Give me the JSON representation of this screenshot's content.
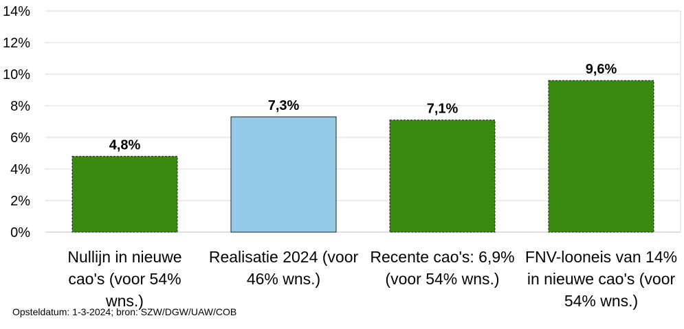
{
  "chart_data": {
    "type": "bar",
    "categories": [
      "Nullijn in nieuwe cao's (voor 54% wns.)",
      "Realisatie 2024 (voor 46% wns.)",
      "Recente cao's: 6,9% (voor 54% wns.)",
      "FNV-looneis van 14% in nieuwe cao's (voor 54% wns.)"
    ],
    "values": [
      4.8,
      7.3,
      7.1,
      9.6
    ],
    "data_labels": [
      "4,8%",
      "7,3%",
      "7,1%",
      "9,6%"
    ],
    "bar_colors": [
      "#3a8a12",
      "#94cbe8",
      "#3a8a12",
      "#3a8a12"
    ],
    "bar_borders": [
      "dashed",
      "solid",
      "dashed",
      "dashed"
    ],
    "ylim": [
      0,
      14
    ],
    "yticks": [
      0,
      2,
      4,
      6,
      8,
      10,
      12,
      14
    ],
    "ytick_labels": [
      "0%",
      "2%",
      "4%",
      "6%",
      "8%",
      "10%",
      "12%",
      "14%"
    ],
    "grid": true,
    "title": "",
    "xlabel": "",
    "ylabel": ""
  },
  "footnote": "Opsteldatum: 1-3-2024; bron: SZW/DGW/UAW/COB"
}
